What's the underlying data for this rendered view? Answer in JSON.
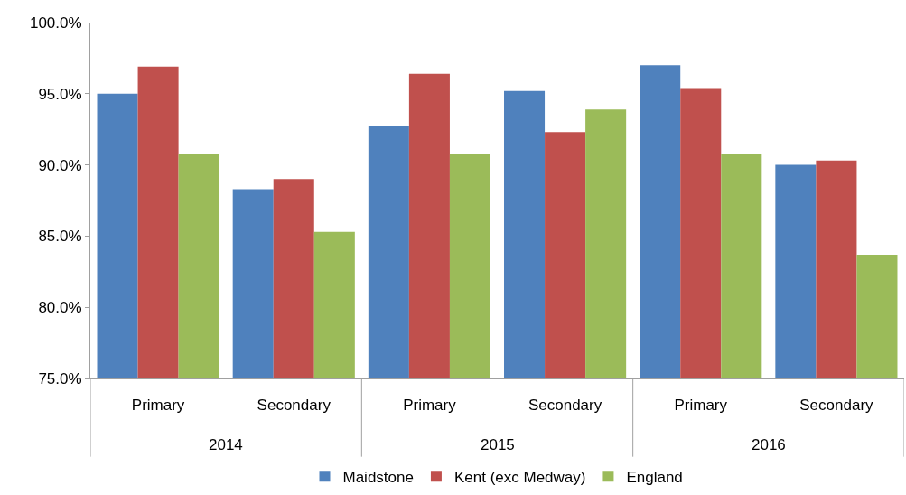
{
  "chart_data": {
    "type": "bar",
    "categories": [
      "Primary",
      "Secondary",
      "Primary",
      "Secondary",
      "Primary",
      "Secondary"
    ],
    "series": [
      {
        "name": "Maidstone",
        "color": "#4f81bd",
        "values": [
          95.0,
          88.3,
          92.7,
          95.2,
          97.0,
          90.0
        ]
      },
      {
        "name": "Kent (exc Medway)",
        "color": "#c0504d",
        "values": [
          96.9,
          89.0,
          96.4,
          92.3,
          95.4,
          90.3
        ]
      },
      {
        "name": "England",
        "color": "#9bbb59",
        "values": [
          90.8,
          85.3,
          90.8,
          93.9,
          90.8,
          83.7
        ]
      }
    ],
    "annotations": [
      "2014",
      "2015",
      "2016"
    ],
    "ylim": [
      75,
      100
    ],
    "yticks": [
      {
        "value": 75,
        "label": "75.0%"
      },
      {
        "value": 80,
        "label": "80.0%"
      },
      {
        "value": 85,
        "label": "85.0%"
      },
      {
        "value": 90,
        "label": "90.0%"
      },
      {
        "value": 95,
        "label": "95.0%"
      },
      {
        "value": 100,
        "label": "100.0%"
      }
    ],
    "grid": false,
    "legend": "bottom"
  }
}
